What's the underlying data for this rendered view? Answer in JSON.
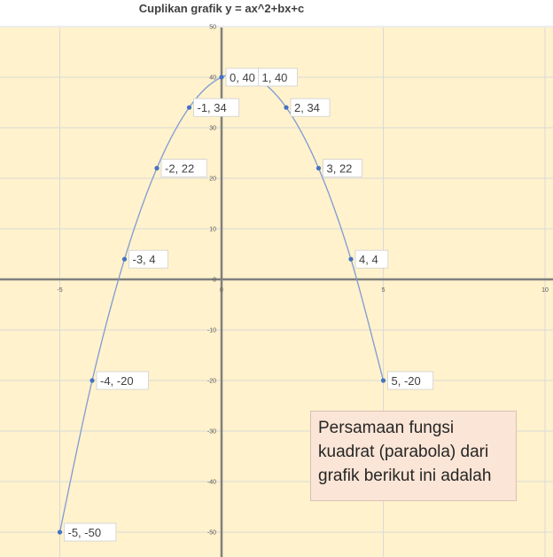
{
  "chart_data": {
    "type": "scatter",
    "title": "Cuplikan grafik y = ax^2+bx+c",
    "xlabel": "",
    "ylabel": "",
    "xlim": [
      -5,
      10
    ],
    "ylim": [
      -50,
      50
    ],
    "x_ticks": [
      -5,
      0,
      5,
      10
    ],
    "y_ticks": [
      50,
      40,
      30,
      20,
      10,
      0,
      -10,
      -20,
      -30,
      -40,
      -50
    ],
    "grid": true,
    "smooth_line": true,
    "colors": {
      "plot_background": "#fff2cc",
      "line": "#7f9bd4",
      "marker": "#4472c4",
      "grid": "#d9d9d9",
      "axis": "#7f7f7f"
    },
    "series": [
      {
        "x": [
          -5,
          -4,
          -3,
          -2,
          -1,
          0,
          1,
          2,
          3,
          4,
          5
        ],
        "y": [
          -50,
          -20,
          4,
          22,
          34,
          40,
          40,
          34,
          22,
          4,
          -20
        ],
        "labels": [
          "-5, -50",
          "-4, -20",
          "-3, 4",
          "-2, 22",
          "-1, 34",
          "0, 40",
          "1, 40",
          "2, 34",
          "3, 22",
          "4, 4",
          "5, -20"
        ]
      }
    ]
  },
  "note": {
    "text_lines": [
      "Persamaan fungsi",
      "kuadrat (parabola) dari",
      "grafik berikut ini adalah"
    ]
  }
}
